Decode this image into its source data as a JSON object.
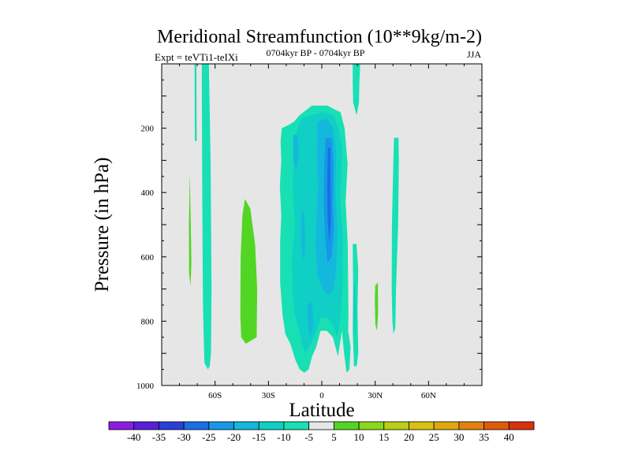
{
  "chart_data": {
    "type": "heatmap",
    "title": "Meridional Streamfunction (10**9kg/m-2)",
    "subtitle": "0704kyr BP - 0704kyr BP",
    "left_label": "Expt = teVTi1-teIXi",
    "right_label": "JJA",
    "xlabel": "Latitude",
    "ylabel": "Pressure (in hPa)",
    "xlim": [
      -90,
      90
    ],
    "ylim": [
      1000,
      0
    ],
    "x_ticks": [
      {
        "value": -60,
        "label": "60S"
      },
      {
        "value": -30,
        "label": "30S"
      },
      {
        "value": 0,
        "label": "0"
      },
      {
        "value": 30,
        "label": "30N"
      },
      {
        "value": 60,
        "label": "60N"
      }
    ],
    "y_ticks": [
      {
        "value": 200,
        "label": "200"
      },
      {
        "value": 400,
        "label": "400"
      },
      {
        "value": 600,
        "label": "600"
      },
      {
        "value": 800,
        "label": "800"
      },
      {
        "value": 1000,
        "label": "1000"
      }
    ],
    "colorbar": {
      "labels": [
        "-40",
        "-35",
        "-30",
        "-25",
        "-20",
        "-15",
        "-10",
        "-5",
        "5",
        "10",
        "15",
        "20",
        "25",
        "30",
        "35",
        "40"
      ],
      "colors": [
        "#8a1ee0",
        "#5a1fd8",
        "#2a3fd8",
        "#1a6ee6",
        "#1598e8",
        "#14b8dc",
        "#10cfc4",
        "#18e0b4",
        "#e6e6e6",
        "#52d624",
        "#8ad81a",
        "#b8cf14",
        "#d8c210",
        "#e0a80e",
        "#e2820c",
        "#e05a0a",
        "#d8320a"
      ]
    },
    "regions": [
      {
        "name": "band-sh-thin",
        "level": "-5",
        "points": [
          [
            -71.5,
            0
          ],
          [
            -70.5,
            0
          ],
          [
            -70.3,
            240
          ],
          [
            -71.4,
            240
          ]
        ]
      },
      {
        "name": "band-sh-60s",
        "level": "-5",
        "points": [
          [
            -67.5,
            0
          ],
          [
            -63.5,
            0
          ],
          [
            -62.5,
            300
          ],
          [
            -62.0,
            700
          ],
          [
            -62.3,
            900
          ],
          [
            -63.0,
            940
          ],
          [
            -64.0,
            950
          ],
          [
            -66.0,
            930
          ],
          [
            -66.8,
            750
          ],
          [
            -67.2,
            400
          ]
        ]
      },
      {
        "name": "green-75s",
        "level": "5",
        "points": [
          [
            -74.2,
            340
          ],
          [
            -73.8,
            450
          ],
          [
            -73.3,
            620
          ],
          [
            -73.8,
            690
          ],
          [
            -74.6,
            650
          ],
          [
            -74.7,
            500
          ]
        ]
      },
      {
        "name": "green-45s",
        "level": "5",
        "points": [
          [
            -43.2,
            420
          ],
          [
            -40.2,
            450
          ],
          [
            -37.5,
            560
          ],
          [
            -36.3,
            700
          ],
          [
            -36.6,
            850
          ],
          [
            -39.6,
            860
          ],
          [
            -42.7,
            870
          ],
          [
            -45.3,
            850
          ],
          [
            -45.8,
            780
          ],
          [
            -45.6,
            600
          ],
          [
            -44.6,
            470
          ]
        ]
      },
      {
        "name": "equatorial-outer",
        "level": "-5",
        "points": [
          [
            -22.5,
            200
          ],
          [
            -18.6,
            190
          ],
          [
            -15.6,
            180
          ],
          [
            -12.6,
            160
          ],
          [
            -5.6,
            130
          ],
          [
            3.3,
            130
          ],
          [
            6.5,
            140
          ],
          [
            10.5,
            150
          ],
          [
            12.8,
            200
          ],
          [
            14.5,
            310
          ],
          [
            13.4,
            430
          ],
          [
            14.6,
            560
          ],
          [
            15.0,
            780
          ],
          [
            14.8,
            830
          ],
          [
            16.2,
            880
          ],
          [
            15.5,
            950
          ],
          [
            13.9,
            960
          ],
          [
            12.5,
            900
          ],
          [
            11.3,
            830
          ],
          [
            9.1,
            910
          ],
          [
            6.2,
            850
          ],
          [
            2.8,
            830
          ],
          [
            -0.7,
            830
          ],
          [
            -3.1,
            880
          ],
          [
            -5.5,
            910
          ],
          [
            -7.4,
            950
          ],
          [
            -9.8,
            960
          ],
          [
            -12.4,
            950
          ],
          [
            -14.9,
            920
          ],
          [
            -17.7,
            870
          ],
          [
            -20.5,
            840
          ],
          [
            -22.1,
            780
          ],
          [
            -23.4,
            680
          ],
          [
            -23.4,
            550
          ],
          [
            -22.8,
            470
          ],
          [
            -23.6,
            380
          ],
          [
            -22.8,
            300
          ],
          [
            -23.2,
            240
          ]
        ]
      },
      {
        "name": "inner-a",
        "level": "-10",
        "points": [
          [
            -11.3,
            170
          ],
          [
            -6.2,
            160
          ],
          [
            0.5,
            150
          ],
          [
            6.5,
            160
          ],
          [
            9.3,
            200
          ],
          [
            11.5,
            260
          ],
          [
            10.4,
            420
          ],
          [
            11.9,
            540
          ],
          [
            11.6,
            700
          ],
          [
            10.3,
            800
          ],
          [
            8.8,
            850
          ],
          [
            6.2,
            810
          ],
          [
            3.1,
            790
          ],
          [
            -0.5,
            790
          ],
          [
            -3.5,
            840
          ],
          [
            -6.2,
            870
          ],
          [
            -9.2,
            900
          ],
          [
            -11.3,
            870
          ],
          [
            -13.0,
            820
          ],
          [
            -15.2,
            780
          ],
          [
            -16.5,
            700
          ],
          [
            -16.7,
            600
          ],
          [
            -15.1,
            500
          ],
          [
            -16.4,
            380
          ],
          [
            -15.6,
            270
          ],
          [
            -13.7,
            200
          ]
        ]
      },
      {
        "name": "inner-b",
        "level": "-15",
        "points": [
          [
            -2.5,
            180
          ],
          [
            3.1,
            170
          ],
          [
            6.4,
            200
          ],
          [
            7.9,
            270
          ],
          [
            7.6,
            400
          ],
          [
            8.7,
            500
          ],
          [
            8.2,
            620
          ],
          [
            6.8,
            700
          ],
          [
            3.9,
            720
          ],
          [
            0.6,
            700
          ],
          [
            -2.4,
            660
          ],
          [
            -3.5,
            560
          ],
          [
            -2.8,
            460
          ],
          [
            -2.1,
            380
          ],
          [
            -2.8,
            300
          ]
        ]
      },
      {
        "name": "inner-c",
        "level": "-20",
        "points": [
          [
            2.1,
            230
          ],
          [
            5.4,
            230
          ],
          [
            6.6,
            300
          ],
          [
            6.3,
            420
          ],
          [
            6.7,
            520
          ],
          [
            5.4,
            600
          ],
          [
            3.2,
            620
          ],
          [
            1.7,
            520
          ],
          [
            1.0,
            420
          ],
          [
            1.3,
            320
          ]
        ]
      },
      {
        "name": "inner-d",
        "level": "-25",
        "points": [
          [
            3.4,
            260
          ],
          [
            4.8,
            260
          ],
          [
            4.9,
            400
          ],
          [
            5.2,
            480
          ],
          [
            4.2,
            560
          ],
          [
            3.3,
            480
          ],
          [
            3.0,
            380
          ]
        ]
      },
      {
        "name": "blob-w1",
        "level": "-15",
        "points": [
          [
            -16.1,
            220
          ],
          [
            -13.6,
            220
          ],
          [
            -12.9,
            280
          ],
          [
            -14.4,
            330
          ],
          [
            -16.1,
            300
          ]
        ]
      },
      {
        "name": "blob-w2",
        "level": "-15",
        "points": [
          [
            -11.5,
            460
          ],
          [
            -10.0,
            460
          ],
          [
            -9.2,
            560
          ],
          [
            -10.2,
            620
          ],
          [
            -11.4,
            560
          ]
        ]
      },
      {
        "name": "blob-s",
        "level": "-15",
        "points": [
          [
            -8.0,
            750
          ],
          [
            -5.6,
            740
          ],
          [
            -4.7,
            810
          ],
          [
            -6.4,
            850
          ],
          [
            -7.8,
            820
          ]
        ]
      },
      {
        "name": "sub-30n",
        "level": "-5",
        "points": [
          [
            17.4,
            560
          ],
          [
            19.5,
            560
          ],
          [
            20.5,
            640
          ],
          [
            20.1,
            760
          ],
          [
            20.5,
            900
          ],
          [
            19.6,
            940
          ],
          [
            18.1,
            940
          ],
          [
            17.4,
            830
          ],
          [
            17.6,
            700
          ]
        ]
      },
      {
        "name": "sub-30n-b",
        "level": "-10",
        "points": [
          [
            17.8,
            680
          ],
          [
            18.9,
            680
          ],
          [
            19.3,
            780
          ],
          [
            18.7,
            860
          ],
          [
            18.0,
            800
          ]
        ]
      },
      {
        "name": "top-20n",
        "level": "-5",
        "points": [
          [
            17.4,
            0
          ],
          [
            21.6,
            0
          ],
          [
            21.1,
            60
          ],
          [
            20.9,
            120
          ],
          [
            19.6,
            160
          ],
          [
            17.6,
            120
          ],
          [
            17.4,
            60
          ]
        ]
      },
      {
        "name": "green-30n",
        "level": "5",
        "points": [
          [
            30.0,
            690
          ],
          [
            31.5,
            680
          ],
          [
            31.6,
            780
          ],
          [
            31.0,
            830
          ],
          [
            30.1,
            810
          ],
          [
            29.8,
            740
          ]
        ]
      },
      {
        "name": "band-40n",
        "level": "-5",
        "points": [
          [
            40.6,
            230
          ],
          [
            43.1,
            230
          ],
          [
            43.3,
            300
          ],
          [
            42.9,
            500
          ],
          [
            41.7,
            700
          ],
          [
            41.3,
            820
          ],
          [
            40.3,
            840
          ],
          [
            39.7,
            800
          ],
          [
            39.3,
            700
          ],
          [
            39.4,
            500
          ],
          [
            40.2,
            300
          ]
        ]
      }
    ]
  }
}
